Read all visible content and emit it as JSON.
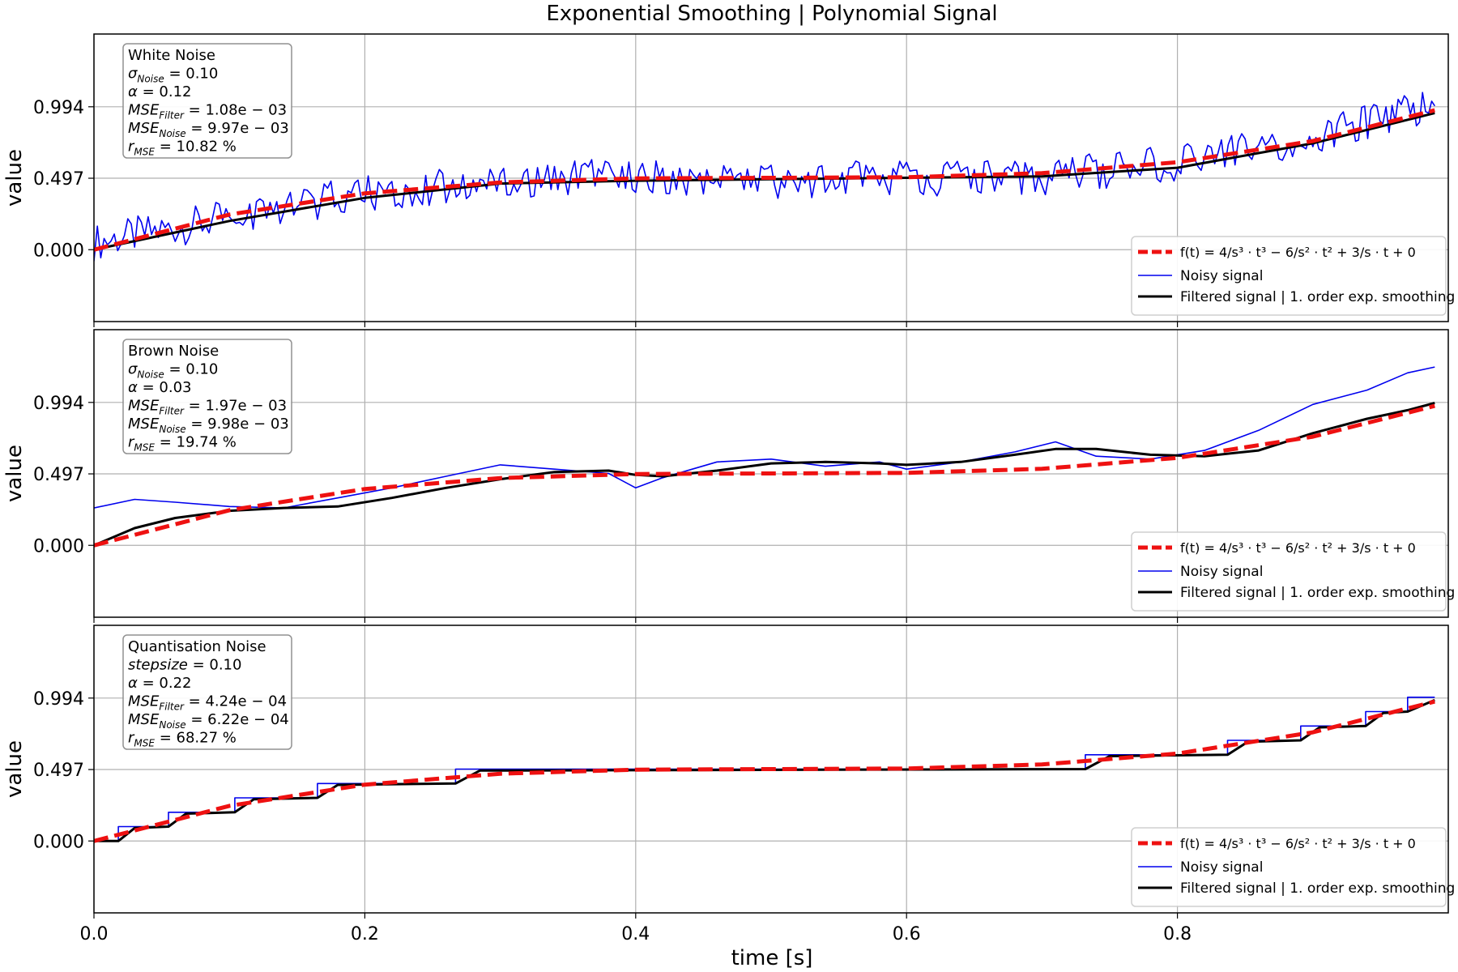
{
  "title": "Exponential Smoothing | Polynomial Signal",
  "xlabel": "time [s]",
  "ylabel": "value",
  "x_ticks": [
    "0.0",
    "0.2",
    "0.4",
    "0.6",
    "0.8"
  ],
  "y_ticks": [
    "0.000",
    "0.497",
    "0.994"
  ],
  "legend": {
    "true_signal": "f(t) = 4/s³ · t³ − 6/s² · t² + 3/s · t + 0",
    "noisy": "Noisy signal",
    "filtered": "Filtered signal | 1. order exp. smoothing"
  },
  "colors": {
    "true": "#ee1111",
    "noisy": "#0000ee",
    "filtered": "#000000",
    "grid": "#b0b0b0"
  },
  "panels": [
    {
      "info": {
        "name": "White Noise",
        "param_label": "σ",
        "param_sub": "Noise",
        "param_value": "0.10",
        "alpha": "0.12",
        "mse_filter": "1.08e − 03",
        "mse_noise": "9.97e − 03",
        "r_mse": "10.82 %"
      }
    },
    {
      "info": {
        "name": "Brown Noise",
        "param_label": "σ",
        "param_sub": "Noise",
        "param_value": "0.10",
        "alpha": "0.03",
        "mse_filter": "1.97e − 03",
        "mse_noise": "9.98e − 03",
        "r_mse": "19.74 %"
      }
    },
    {
      "info": {
        "name": "Quantisation Noise",
        "param_label": "stepsize",
        "param_sub": "",
        "param_value": "0.10",
        "alpha": "0.22",
        "mse_filter": "4.24e − 04",
        "mse_noise": "6.22e − 04",
        "r_mse": "68.27 %"
      }
    }
  ],
  "chart_data": [
    {
      "type": "line",
      "title": "White Noise",
      "xlim": [
        0,
        1
      ],
      "ylim": [
        -0.5,
        1.5
      ],
      "series": [
        {
          "name": "f(t) = 4/s³ · t³ − 6/s² · t² + 3/s · t + 0",
          "style": "dashed",
          "x": [
            0,
            0.1,
            0.2,
            0.3,
            0.4,
            0.5,
            0.6,
            0.7,
            0.8,
            0.9,
            0.99
          ],
          "y": [
            0,
            0.244,
            0.392,
            0.468,
            0.496,
            0.5,
            0.504,
            0.532,
            0.608,
            0.756,
            0.97
          ]
        },
        {
          "name": "Noisy signal",
          "x": [
            0,
            0.1,
            0.2,
            0.3,
            0.4,
            0.5,
            0.6,
            0.7,
            0.8,
            0.9,
            0.99
          ],
          "y": [
            0.05,
            0.22,
            0.4,
            0.47,
            0.52,
            0.48,
            0.5,
            0.51,
            0.6,
            0.78,
            1.0
          ]
        },
        {
          "name": "Filtered signal | 1. order exp. smoothing",
          "x": [
            0,
            0.1,
            0.2,
            0.3,
            0.4,
            0.5,
            0.6,
            0.7,
            0.8,
            0.9,
            0.99
          ],
          "y": [
            0.0,
            0.2,
            0.36,
            0.46,
            0.48,
            0.49,
            0.5,
            0.51,
            0.57,
            0.74,
            0.95
          ]
        }
      ]
    },
    {
      "type": "line",
      "title": "Brown Noise",
      "xlim": [
        0,
        1
      ],
      "ylim": [
        -0.5,
        1.5
      ],
      "series": [
        {
          "name": "f(t) = 4/s³ · t³ − 6/s² · t² + 3/s · t + 0",
          "style": "dashed",
          "x": [
            0,
            0.1,
            0.2,
            0.3,
            0.4,
            0.5,
            0.6,
            0.7,
            0.8,
            0.9,
            0.99
          ],
          "y": [
            0,
            0.244,
            0.392,
            0.468,
            0.496,
            0.5,
            0.504,
            0.532,
            0.608,
            0.756,
            0.97
          ]
        },
        {
          "name": "Noisy signal",
          "x": [
            0,
            0.03,
            0.06,
            0.1,
            0.14,
            0.18,
            0.22,
            0.26,
            0.3,
            0.34,
            0.38,
            0.4,
            0.42,
            0.46,
            0.5,
            0.54,
            0.58,
            0.6,
            0.64,
            0.68,
            0.71,
            0.74,
            0.78,
            0.82,
            0.86,
            0.9,
            0.94,
            0.97,
            0.99
          ],
          "y": [
            0.26,
            0.32,
            0.3,
            0.27,
            0.26,
            0.33,
            0.4,
            0.48,
            0.56,
            0.53,
            0.5,
            0.4,
            0.47,
            0.58,
            0.6,
            0.55,
            0.58,
            0.53,
            0.58,
            0.65,
            0.72,
            0.62,
            0.6,
            0.66,
            0.8,
            0.98,
            1.08,
            1.2,
            1.24
          ]
        },
        {
          "name": "Filtered signal | 1. order exp. smoothing",
          "x": [
            0,
            0.03,
            0.06,
            0.1,
            0.14,
            0.18,
            0.22,
            0.26,
            0.3,
            0.34,
            0.38,
            0.4,
            0.42,
            0.46,
            0.5,
            0.54,
            0.58,
            0.6,
            0.64,
            0.68,
            0.71,
            0.74,
            0.78,
            0.82,
            0.86,
            0.9,
            0.94,
            0.97,
            0.99
          ],
          "y": [
            0.0,
            0.12,
            0.19,
            0.24,
            0.26,
            0.27,
            0.33,
            0.4,
            0.46,
            0.51,
            0.52,
            0.49,
            0.48,
            0.52,
            0.57,
            0.58,
            0.57,
            0.56,
            0.58,
            0.63,
            0.67,
            0.67,
            0.63,
            0.62,
            0.66,
            0.78,
            0.88,
            0.94,
            0.99
          ]
        }
      ]
    },
    {
      "type": "line",
      "title": "Quantisation Noise",
      "xlim": [
        0,
        1
      ],
      "ylim": [
        -0.5,
        1.5
      ],
      "series": [
        {
          "name": "f(t) = 4/s³ · t³ − 6/s² · t² + 3/s · t + 0",
          "style": "dashed",
          "x": [
            0,
            0.1,
            0.2,
            0.3,
            0.4,
            0.5,
            0.6,
            0.7,
            0.8,
            0.9,
            0.99
          ],
          "y": [
            0,
            0.244,
            0.392,
            0.468,
            0.496,
            0.5,
            0.504,
            0.532,
            0.608,
            0.756,
            0.97
          ]
        },
        {
          "name": "Noisy signal",
          "style": "step",
          "x": [
            0,
            0.018,
            0.055,
            0.104,
            0.165,
            0.267,
            0.732,
            0.798,
            0.837,
            0.891,
            0.939,
            0.97,
            0.99
          ],
          "y": [
            0.0,
            0.1,
            0.2,
            0.3,
            0.4,
            0.5,
            0.6,
            0.6,
            0.7,
            0.8,
            0.9,
            1.0,
            1.0
          ]
        },
        {
          "name": "Filtered signal | 1. order exp. smoothing",
          "x": [
            0,
            0.018,
            0.03,
            0.055,
            0.068,
            0.104,
            0.118,
            0.165,
            0.18,
            0.267,
            0.285,
            0.732,
            0.75,
            0.837,
            0.852,
            0.891,
            0.905,
            0.939,
            0.952,
            0.97,
            0.99
          ],
          "y": [
            0.0,
            0.0,
            0.09,
            0.1,
            0.19,
            0.2,
            0.29,
            0.3,
            0.39,
            0.4,
            0.49,
            0.5,
            0.59,
            0.6,
            0.69,
            0.7,
            0.79,
            0.8,
            0.89,
            0.9,
            0.98
          ]
        }
      ]
    }
  ]
}
